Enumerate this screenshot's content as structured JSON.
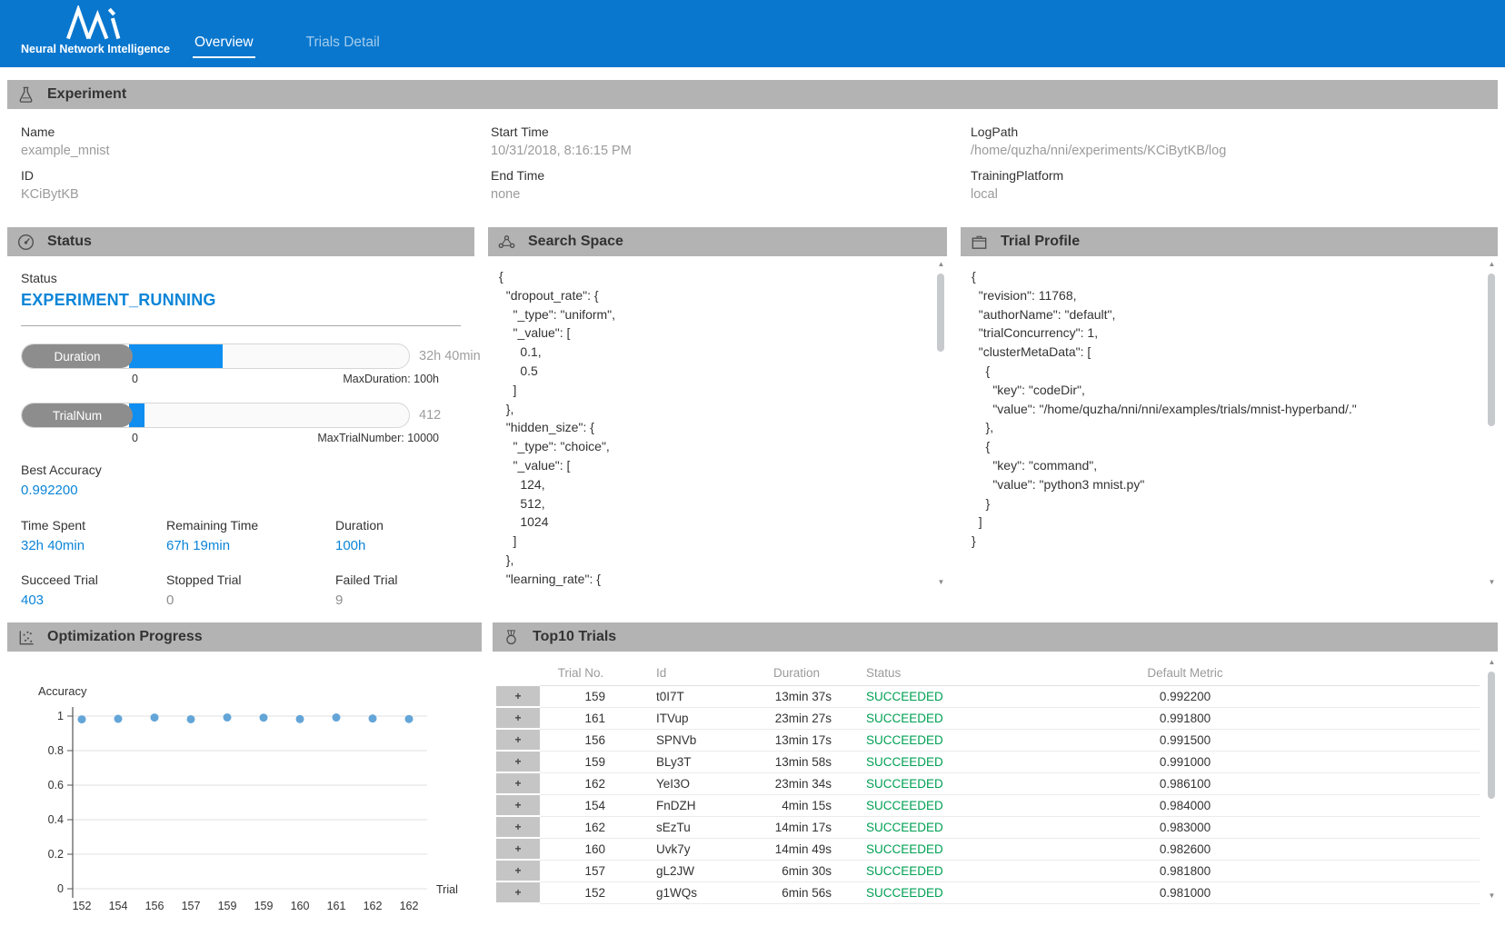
{
  "header": {
    "brand": "Neural Network Intelligence",
    "tabs": [
      {
        "label": "Overview",
        "active": true
      },
      {
        "label": "Trials Detail",
        "active": false
      }
    ]
  },
  "experiment": {
    "title": "Experiment",
    "fields": [
      {
        "label": "Name",
        "value": "example_mnist"
      },
      {
        "label": "ID",
        "value": "KCiBytKB"
      },
      {
        "label": "Start Time",
        "value": "10/31/2018, 8:16:15 PM"
      },
      {
        "label": "End Time",
        "value": "none"
      },
      {
        "label": "LogPath",
        "value": "/home/quzha/nni/experiments/KCiBytKB/log"
      },
      {
        "label": "TrainingPlatform",
        "value": "local"
      }
    ]
  },
  "status": {
    "title": "Status",
    "status_label": "Status",
    "status_value": "EXPERIMENT_RUNNING",
    "bars": [
      {
        "label": "Duration",
        "value_text": "32h 40min",
        "min": "0",
        "max_text": "MaxDuration: 100h",
        "percent": 32.67
      },
      {
        "label": "TrialNum",
        "value_text": "412",
        "min": "0",
        "max_text": "MaxTrialNumber: 10000",
        "percent": 4.12
      }
    ],
    "best_accuracy": {
      "label": "Best Accuracy",
      "value": "0.992200"
    },
    "stats": [
      {
        "label": "Time Spent",
        "value": "32h 40min",
        "blue": true
      },
      {
        "label": "Remaining Time",
        "value": "67h 19min",
        "blue": true
      },
      {
        "label": "Duration",
        "value": "100h",
        "blue": true
      },
      {
        "label": "Succeed Trial",
        "value": "403",
        "blue": true
      },
      {
        "label": "Stopped Trial",
        "value": "0",
        "blue": false
      },
      {
        "label": "Failed Trial",
        "value": "9",
        "blue": false
      }
    ]
  },
  "search_space": {
    "title": "Search Space",
    "json_lines": [
      "{",
      "  \"dropout_rate\": {",
      "    \"_type\": \"uniform\",",
      "    \"_value\": [",
      "      0.1,",
      "      0.5",
      "    ]",
      "  },",
      "  \"hidden_size\": {",
      "    \"_type\": \"choice\",",
      "    \"_value\": [",
      "      124,",
      "      512,",
      "      1024",
      "    ]",
      "  },",
      "  \"learning_rate\": {"
    ]
  },
  "trial_profile": {
    "title": "Trial Profile",
    "json_lines": [
      "{",
      "  \"revision\": 11768,",
      "  \"authorName\": \"default\",",
      "  \"trialConcurrency\": 1,",
      "  \"clusterMetaData\": [",
      "    {",
      "      \"key\": \"codeDir\",",
      "      \"value\": \"/home/quzha/nni/nni/examples/trials/mnist-hyperband/.\"",
      "    },",
      "    {",
      "      \"key\": \"command\",",
      "      \"value\": \"python3 mnist.py\"",
      "    }",
      "  ]",
      "}"
    ]
  },
  "optimization": {
    "title": "Optimization Progress"
  },
  "chart_data": {
    "type": "scatter",
    "title": "Optimization Progress",
    "xlabel": "Trial",
    "ylabel": "Accuracy",
    "x": [
      "152",
      "154",
      "156",
      "157",
      "159",
      "159",
      "160",
      "161",
      "162",
      "162"
    ],
    "y": [
      0.981,
      0.984,
      0.9915,
      0.9818,
      0.9922,
      0.991,
      0.9826,
      0.9918,
      0.9861,
      0.983
    ],
    "ylim": [
      0,
      1
    ],
    "yticks": [
      0,
      0.2,
      0.4,
      0.6,
      0.8,
      1
    ],
    "grid": true,
    "legend": "none",
    "point_color": "#64A5D8"
  },
  "top10": {
    "title": "Top10 Trials",
    "expand_symbol": "+",
    "columns": [
      "Trial No.",
      "Id",
      "Duration",
      "Status",
      "Default Metric"
    ],
    "rows": [
      {
        "trial_no": "159",
        "id": "t0I7T",
        "duration": "13min 37s",
        "status": "SUCCEEDED",
        "metric": "0.992200"
      },
      {
        "trial_no": "161",
        "id": "ITVup",
        "duration": "23min 27s",
        "status": "SUCCEEDED",
        "metric": "0.991800"
      },
      {
        "trial_no": "156",
        "id": "SPNVb",
        "duration": "13min 17s",
        "status": "SUCCEEDED",
        "metric": "0.991500"
      },
      {
        "trial_no": "159",
        "id": "BLy3T",
        "duration": "13min 58s",
        "status": "SUCCEEDED",
        "metric": "0.991000"
      },
      {
        "trial_no": "162",
        "id": "YeI3O",
        "duration": "23min 34s",
        "status": "SUCCEEDED",
        "metric": "0.986100"
      },
      {
        "trial_no": "154",
        "id": "FnDZH",
        "duration": "4min 15s",
        "status": "SUCCEEDED",
        "metric": "0.984000"
      },
      {
        "trial_no": "162",
        "id": "sEzTu",
        "duration": "14min 17s",
        "status": "SUCCEEDED",
        "metric": "0.983000"
      },
      {
        "trial_no": "160",
        "id": "Uvk7y",
        "duration": "14min 49s",
        "status": "SUCCEEDED",
        "metric": "0.982600"
      },
      {
        "trial_no": "157",
        "id": "gL2JW",
        "duration": "6min 30s",
        "status": "SUCCEEDED",
        "metric": "0.981800"
      },
      {
        "trial_no": "152",
        "id": "g1WQs",
        "duration": "6min 56s",
        "status": "SUCCEEDED",
        "metric": "0.981000"
      }
    ]
  },
  "colors": {
    "header_blue": "#0977CE",
    "accent_blue": "#0B85D8",
    "progress_fill": "#0F8EF0",
    "success_green": "#00A053",
    "section_bar_gray": "#B3B3B3"
  }
}
